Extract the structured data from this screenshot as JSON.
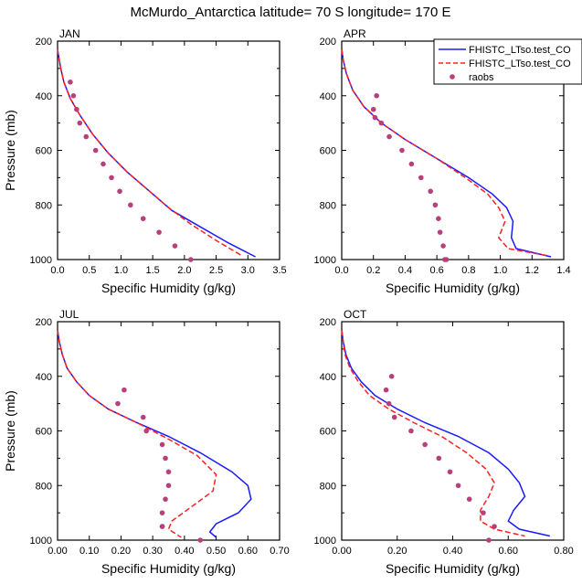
{
  "figure": {
    "title": "McMurdo_Antarctica  latitude= 70 S longitude= 170 E"
  },
  "legend": {
    "entries": [
      {
        "label": "FHISTC_LTso.test_CO",
        "style": "solid",
        "color": "#1a1aff"
      },
      {
        "label": "FHISTC_LTso.test_CO",
        "style": "dashed",
        "color": "#ff2020"
      },
      {
        "label": "raobs",
        "style": "dots",
        "color": "#b8407a"
      }
    ]
  },
  "colors": {
    "series1": "#1a1aff",
    "series2": "#ff2020",
    "raobs": "#b8407a"
  },
  "chart_data": [
    {
      "type": "line",
      "panel": "JAN",
      "xlabel": "Specific Humidity (g/kg)",
      "ylabel": "Pressure (mb)",
      "xlim": [
        0,
        3.5
      ],
      "ylim": [
        200,
        1000
      ],
      "y_inverted": true,
      "xticks": [
        "0.0",
        "0.5",
        "1.0",
        "1.5",
        "2.0",
        "2.5",
        "3.0",
        "3.5"
      ],
      "yticks": [
        "200",
        "400",
        "600",
        "800",
        "1000"
      ],
      "series": [
        {
          "key": "s1",
          "x": [
            0.0,
            0.02,
            0.05,
            0.1,
            0.2,
            0.35,
            0.55,
            0.8,
            1.1,
            1.45,
            1.8,
            2.25,
            2.7,
            3.12
          ],
          "y": [
            230,
            260,
            300,
            350,
            410,
            470,
            540,
            610,
            680,
            750,
            820,
            880,
            940,
            990
          ]
        },
        {
          "key": "s2",
          "x": [
            0.0,
            0.02,
            0.05,
            0.1,
            0.2,
            0.35,
            0.55,
            0.8,
            1.1,
            1.45,
            1.75,
            2.1,
            2.5,
            2.9
          ],
          "y": [
            230,
            260,
            300,
            350,
            410,
            470,
            540,
            610,
            680,
            750,
            810,
            870,
            930,
            985
          ]
        },
        {
          "key": "raobs",
          "x": [
            0.2,
            0.25,
            0.3,
            0.35,
            0.45,
            0.6,
            0.72,
            0.85,
            0.98,
            1.15,
            1.35,
            1.6,
            1.85,
            2.1
          ],
          "y": [
            350,
            400,
            450,
            500,
            550,
            600,
            650,
            700,
            750,
            800,
            850,
            900,
            950,
            1000
          ]
        }
      ]
    },
    {
      "type": "line",
      "panel": "APR",
      "xlabel": "Specific Humidity (g/kg)",
      "ylabel": "",
      "xlim": [
        0,
        1.4
      ],
      "ylim": [
        200,
        1000
      ],
      "y_inverted": true,
      "xticks": [
        "0.0",
        "0.2",
        "0.4",
        "0.6",
        "0.8",
        "1.0",
        "1.2",
        "1.4"
      ],
      "yticks": [
        "200",
        "400",
        "600",
        "800",
        "1000"
      ],
      "series": [
        {
          "key": "s1",
          "x": [
            0.0,
            0.01,
            0.03,
            0.07,
            0.14,
            0.25,
            0.4,
            0.6,
            0.8,
            0.95,
            1.04,
            1.08,
            1.07,
            1.1,
            1.32
          ],
          "y": [
            230,
            270,
            320,
            380,
            440,
            500,
            560,
            630,
            700,
            760,
            810,
            860,
            920,
            960,
            990
          ]
        },
        {
          "key": "s2",
          "x": [
            0.0,
            0.01,
            0.03,
            0.07,
            0.14,
            0.25,
            0.4,
            0.6,
            0.78,
            0.92,
            0.99,
            1.03,
            0.99,
            1.05,
            1.29
          ],
          "y": [
            230,
            270,
            320,
            380,
            440,
            500,
            560,
            630,
            700,
            760,
            810,
            860,
            920,
            960,
            985
          ]
        },
        {
          "key": "raobs",
          "x": [
            0.22,
            0.2,
            0.21,
            0.25,
            0.3,
            0.38,
            0.44,
            0.5,
            0.56,
            0.59,
            0.61,
            0.62,
            0.64,
            0.65,
            0.66
          ],
          "y": [
            400,
            450,
            480,
            500,
            550,
            600,
            650,
            700,
            750,
            800,
            850,
            900,
            950,
            1000,
            1000
          ]
        }
      ]
    },
    {
      "type": "line",
      "panel": "JUL",
      "xlabel": "Specific Humidity (g/kg)",
      "ylabel": "Pressure (mb)",
      "xlim": [
        0,
        0.7
      ],
      "ylim": [
        200,
        1000
      ],
      "y_inverted": true,
      "xticks": [
        "0.00",
        "0.10",
        "0.20",
        "0.30",
        "0.40",
        "0.50",
        "0.60",
        "0.70"
      ],
      "yticks": [
        "200",
        "400",
        "600",
        "800",
        "1000"
      ],
      "series": [
        {
          "key": "s1",
          "x": [
            0.0,
            0.005,
            0.015,
            0.03,
            0.06,
            0.1,
            0.16,
            0.25,
            0.35,
            0.45,
            0.55,
            0.6,
            0.61,
            0.57,
            0.5,
            0.48,
            0.5
          ],
          "y": [
            230,
            270,
            320,
            370,
            420,
            470,
            520,
            570,
            620,
            680,
            750,
            800,
            850,
            900,
            940,
            970,
            990
          ]
        },
        {
          "key": "s2",
          "x": [
            0.0,
            0.005,
            0.015,
            0.03,
            0.06,
            0.1,
            0.16,
            0.25,
            0.35,
            0.44,
            0.5,
            0.49,
            0.42,
            0.36,
            0.35,
            0.39
          ],
          "y": [
            230,
            270,
            320,
            370,
            420,
            470,
            520,
            570,
            630,
            690,
            760,
            820,
            880,
            930,
            960,
            990
          ]
        },
        {
          "key": "raobs",
          "x": [
            0.21,
            0.19,
            0.27,
            0.28,
            0.33,
            0.34,
            0.35,
            0.35,
            0.34,
            0.33,
            0.33,
            0.33,
            0.45
          ],
          "y": [
            450,
            500,
            550,
            600,
            650,
            700,
            750,
            800,
            850,
            900,
            950,
            950,
            1000
          ]
        }
      ]
    },
    {
      "type": "line",
      "panel": "OCT",
      "xlabel": "Specific Humidity (g/kg)",
      "ylabel": "",
      "xlim": [
        0,
        0.8
      ],
      "ylim": [
        200,
        1000
      ],
      "y_inverted": true,
      "xticks": [
        "0.00",
        "0.20",
        "0.40",
        "0.60",
        "0.80"
      ],
      "yticks": [
        "200",
        "400",
        "600",
        "800",
        "1000"
      ],
      "series": [
        {
          "key": "s1",
          "x": [
            0.0,
            0.005,
            0.015,
            0.035,
            0.07,
            0.12,
            0.2,
            0.3,
            0.42,
            0.53,
            0.6,
            0.64,
            0.66,
            0.62,
            0.6,
            0.64,
            0.75
          ],
          "y": [
            230,
            270,
            320,
            370,
            420,
            470,
            520,
            570,
            620,
            680,
            740,
            790,
            840,
            890,
            930,
            960,
            985
          ]
        },
        {
          "key": "s2",
          "x": [
            0.0,
            0.005,
            0.012,
            0.03,
            0.06,
            0.1,
            0.17,
            0.26,
            0.36,
            0.45,
            0.52,
            0.55,
            0.53,
            0.5,
            0.5,
            0.55,
            0.66
          ],
          "y": [
            230,
            270,
            320,
            370,
            420,
            470,
            520,
            570,
            620,
            680,
            740,
            790,
            840,
            890,
            930,
            960,
            985
          ]
        },
        {
          "key": "raobs",
          "x": [
            0.18,
            0.16,
            0.17,
            0.19,
            0.25,
            0.3,
            0.35,
            0.39,
            0.42,
            0.46,
            0.51,
            0.55,
            0.53
          ],
          "y": [
            400,
            450,
            500,
            550,
            600,
            650,
            700,
            750,
            800,
            850,
            900,
            950,
            1000
          ]
        }
      ]
    }
  ]
}
